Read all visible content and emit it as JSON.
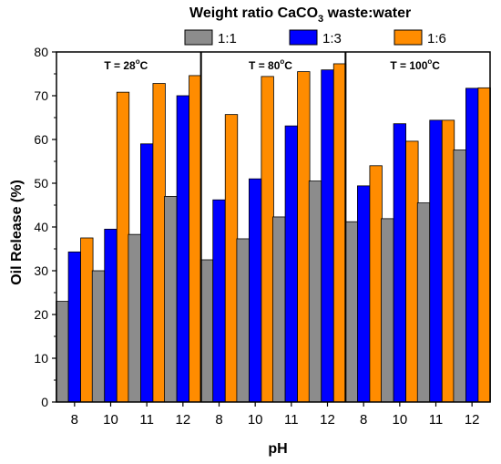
{
  "chart_data": {
    "type": "bar",
    "title_main": "Weight ratio CaCO",
    "title_sub": "3",
    "title_rest": " waste:water",
    "xlabel": "pH",
    "ylabel": "Oil Release (%)",
    "ylim": [
      0,
      80
    ],
    "yticks": [
      "0",
      "10",
      "20",
      "30",
      "40",
      "50",
      "60",
      "70",
      "80"
    ],
    "legend_placement": "top",
    "series": [
      {
        "name": "1:1",
        "color": "#8c8c8c"
      },
      {
        "name": "1:3",
        "color": "#0000ff"
      },
      {
        "name": "1:6",
        "color": "#ff8c00"
      }
    ],
    "panels": [
      {
        "label_pre": "T = 28",
        "label_deg": "o",
        "label_unit": "C",
        "categories": [
          "8",
          "10",
          "11",
          "12"
        ],
        "values": [
          [
            23.0,
            30.0,
            38.3,
            47.0
          ],
          [
            34.3,
            39.5,
            59.0,
            70.0
          ],
          [
            37.5,
            70.8,
            72.8,
            74.6
          ]
        ]
      },
      {
        "label_pre": "T = 80",
        "label_deg": "o",
        "label_unit": "C",
        "categories": [
          "8",
          "10",
          "11",
          "12"
        ],
        "values": [
          [
            32.5,
            37.3,
            42.3,
            50.5
          ],
          [
            46.2,
            51.0,
            63.1,
            75.9
          ],
          [
            65.7,
            74.4,
            75.5,
            77.3
          ]
        ]
      },
      {
        "label_pre": "T = 100",
        "label_deg": "o",
        "label_unit": "C",
        "categories": [
          "8",
          "10",
          "11",
          "12"
        ],
        "values": [
          [
            41.2,
            41.9,
            45.5,
            57.6
          ],
          [
            49.4,
            63.6,
            64.4,
            71.7
          ],
          [
            54.0,
            59.6,
            64.4,
            71.8
          ]
        ]
      }
    ]
  }
}
